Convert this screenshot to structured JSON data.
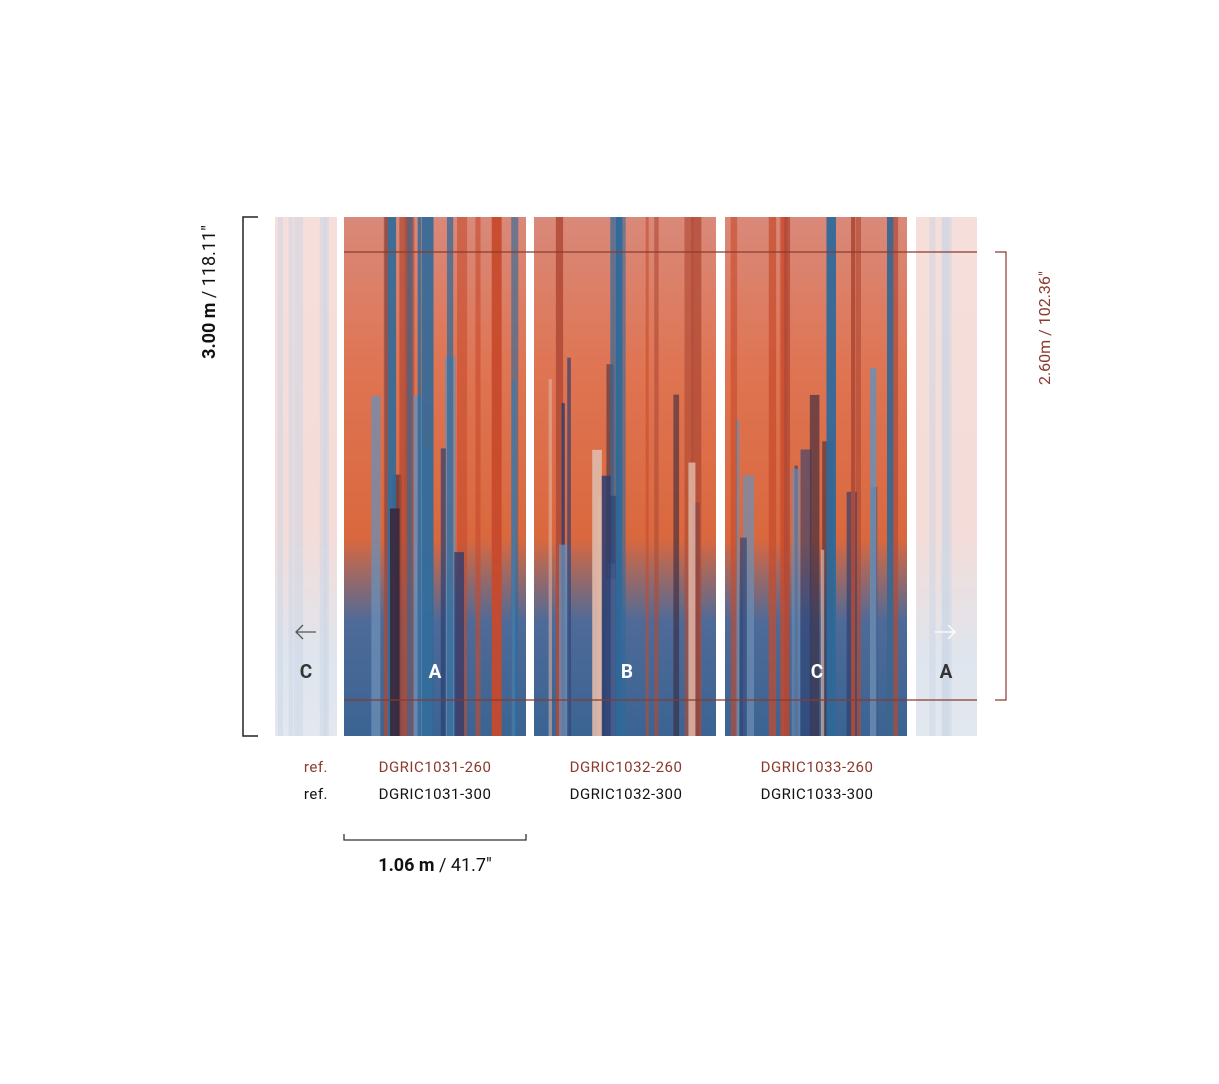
{
  "dimensions": {
    "height": {
      "metric": "3.00 m",
      "imperial": " / 118.11\""
    },
    "print_height": {
      "label": "2.60m / 102.36\""
    },
    "width": {
      "metric": "1.06 m",
      "imperial": " / 41.7\""
    }
  },
  "panels": {
    "left_overlap": "C",
    "main": [
      "A",
      "B",
      "C"
    ],
    "right_overlap": "A"
  },
  "refs": {
    "row_260": {
      "label": "ref.",
      "codes": [
        "DGRIC1031-260",
        "DGRIC1032-260",
        "DGRIC1033-260"
      ]
    },
    "row_300": {
      "label": "ref.",
      "codes": [
        "DGRIC1031-300",
        "DGRIC1032-300",
        "DGRIC1033-300"
      ]
    }
  }
}
